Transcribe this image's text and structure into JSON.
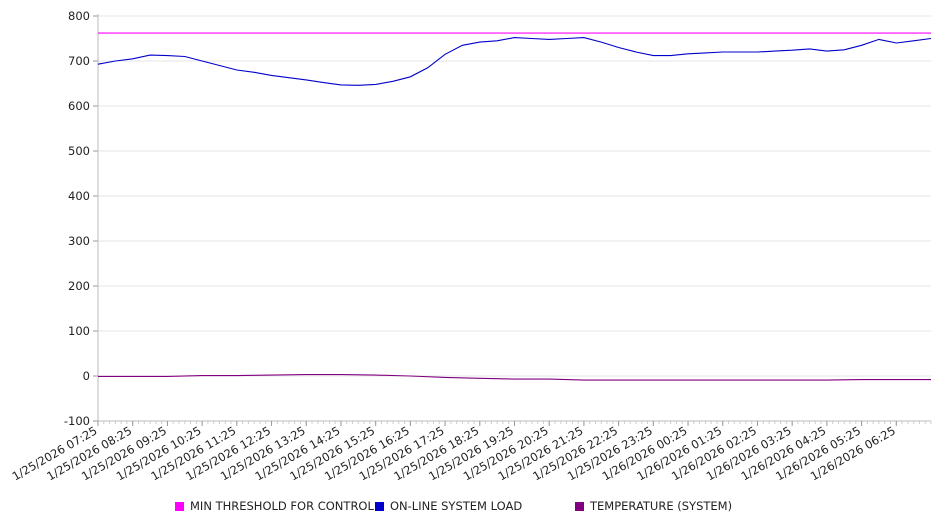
{
  "chart_data": {
    "type": "line",
    "title": "",
    "xlabel": "",
    "ylabel": "",
    "ylim": [
      -100,
      800
    ],
    "yticks": [
      -100,
      0,
      100,
      200,
      300,
      400,
      500,
      600,
      700,
      800
    ],
    "grid": true,
    "legend_position": "bottom",
    "x_tick_labels": [
      "1/25/2026 07:25",
      "1/25/2026 08:25",
      "1/25/2026 09:25",
      "1/25/2026 10:25",
      "1/25/2026 11:25",
      "1/25/2026 12:25",
      "1/25/2026 13:25",
      "1/25/2026 14:25",
      "1/25/2026 15:25",
      "1/25/2026 16:25",
      "1/25/2026 17:25",
      "1/25/2026 18:25",
      "1/25/2026 19:25",
      "1/25/2026 20:25",
      "1/25/2026 21:25",
      "1/25/2026 22:25",
      "1/25/2026 23:25",
      "1/26/2026 00:25",
      "1/26/2026 01:25",
      "1/26/2026 02:25",
      "1/26/2026 03:25",
      "1/26/2026 04:25",
      "1/26/2026 05:25",
      "1/26/2026 06:25"
    ],
    "x_hours": [
      0,
      1,
      2,
      3,
      4,
      5,
      6,
      7,
      8,
      9,
      10,
      11,
      12,
      13,
      14,
      15,
      16,
      17,
      18,
      19,
      20,
      21,
      22,
      23
    ],
    "x_range_hours": [
      0,
      24
    ],
    "series": [
      {
        "name": "MIN THRESHOLD FOR CONTROL",
        "color": "#ff00ff",
        "x": [
          0,
          24
        ],
        "values": [
          762,
          762
        ]
      },
      {
        "name": "ON-LINE SYSTEM LOAD",
        "color": "#0000cc",
        "x": [
          0,
          0.5,
          1,
          1.5,
          2,
          2.5,
          3,
          3.5,
          4,
          4.5,
          5,
          5.5,
          6,
          6.5,
          7,
          7.5,
          8,
          8.5,
          9,
          9.5,
          10,
          10.5,
          11,
          11.5,
          12,
          12.5,
          13,
          13.5,
          14,
          14.5,
          15,
          15.5,
          16,
          16.5,
          17,
          17.5,
          18,
          18.5,
          19,
          19.5,
          20,
          20.5,
          21,
          21.5,
          22,
          22.5,
          23,
          23.5,
          24
        ],
        "values": [
          693,
          700,
          705,
          713,
          712,
          710,
          700,
          690,
          680,
          675,
          668,
          663,
          658,
          652,
          647,
          646,
          648,
          655,
          665,
          685,
          715,
          735,
          742,
          745,
          752,
          750,
          748,
          750,
          752,
          742,
          730,
          720,
          712,
          712,
          716,
          718,
          720,
          720,
          720,
          722,
          724,
          727,
          722,
          725,
          735,
          748,
          740,
          745,
          750
        ]
      },
      {
        "name": "TEMPERATURE (SYSTEM)",
        "color": "#800080",
        "x": [
          0,
          1,
          2,
          3,
          4,
          5,
          6,
          7,
          8,
          9,
          10,
          11,
          12,
          13,
          14,
          15,
          16,
          17,
          18,
          19,
          20,
          21,
          22,
          23,
          24
        ],
        "values": [
          -1,
          -1,
          -1,
          1,
          1,
          2,
          3,
          3,
          2,
          0,
          -3,
          -5,
          -7,
          -7,
          -9,
          -9,
          -9,
          -9,
          -9,
          -9,
          -9,
          -9,
          -8,
          -8,
          -8
        ]
      }
    ]
  }
}
